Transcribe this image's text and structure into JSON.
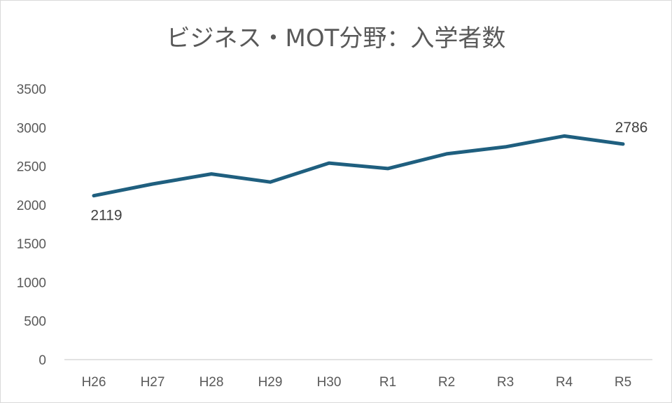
{
  "chart_data": {
    "type": "line",
    "title": "ビジネス・MOT分野：入学者数",
    "categories": [
      "H26",
      "H27",
      "H28",
      "H29",
      "H30",
      "R1",
      "R2",
      "R3",
      "R4",
      "R5"
    ],
    "series": [
      {
        "values": [
          2119,
          2270,
          2400,
          2295,
          2540,
          2470,
          2660,
          2750,
          2890,
          2786
        ]
      }
    ],
    "y_ticks": [
      0,
      500,
      1000,
      1500,
      2000,
      2500,
      3000,
      3500
    ],
    "ylim": [
      0,
      3500
    ],
    "data_labels": [
      {
        "index": 0,
        "text": "2119",
        "position": "below"
      },
      {
        "index": 9,
        "text": "2786",
        "position": "above"
      }
    ],
    "grid": false,
    "legend": "none",
    "colors": {
      "line": "#1f5f7f",
      "axis": "#d9d9d9",
      "text": "#595959"
    }
  }
}
